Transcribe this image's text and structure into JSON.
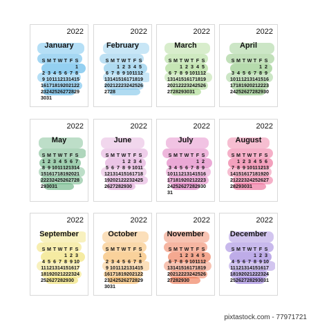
{
  "year": "2022",
  "weekdays": [
    "S",
    "M",
    "T",
    "W",
    "T",
    "F",
    "S"
  ],
  "watermark": "pixtastock.com - 77971721",
  "months": [
    {
      "name": "January",
      "offset": 6,
      "days": 31,
      "color": "#5bb7ea"
    },
    {
      "name": "February",
      "offset": 2,
      "days": 28,
      "color": "#86c7ea"
    },
    {
      "name": "March",
      "offset": 2,
      "days": 31,
      "color": "#a8d88e"
    },
    {
      "name": "April",
      "offset": 5,
      "days": 30,
      "color": "#8fc781"
    },
    {
      "name": "May",
      "offset": 0,
      "days": 31,
      "color": "#6db585"
    },
    {
      "name": "June",
      "offset": 3,
      "days": 30,
      "color": "#e0a6d8"
    },
    {
      "name": "July",
      "offset": 5,
      "days": 31,
      "color": "#e07bc0"
    },
    {
      "name": "August",
      "offset": 1,
      "days": 31,
      "color": "#ec6f9a"
    },
    {
      "name": "September",
      "offset": 4,
      "days": 30,
      "color": "#f0e070"
    },
    {
      "name": "October",
      "offset": 6,
      "days": 31,
      "color": "#f6b865"
    },
    {
      "name": "November",
      "offset": 2,
      "days": 30,
      "color": "#ee7a55"
    },
    {
      "name": "December",
      "offset": 4,
      "days": 31,
      "color": "#9b7fdc"
    }
  ]
}
